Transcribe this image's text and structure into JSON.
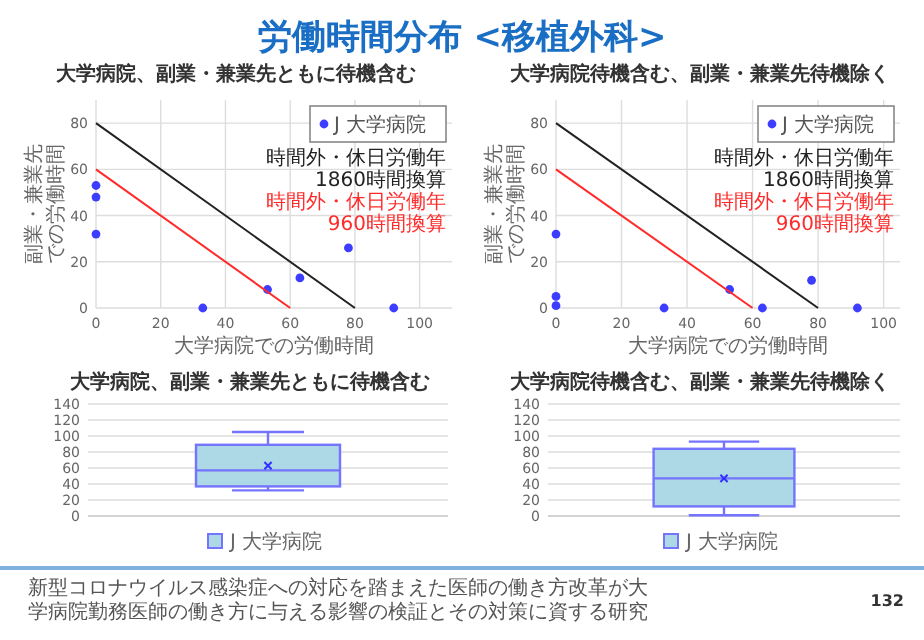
{
  "chart_data": [
    {
      "type": "scatter",
      "title": "大学病院、副業・兼業先ともに待機含む",
      "xlabel": "大学病院での労働時間",
      "ylabel": "副業・兼業先での労働時間",
      "xlim": [
        0,
        110
      ],
      "xticks": [
        0,
        20,
        40,
        60,
        80,
        100
      ],
      "ylim": [
        0,
        90
      ],
      "yticks": [
        0,
        20,
        40,
        60,
        80
      ],
      "grid": true,
      "legend": "top right",
      "marker": "circle",
      "annotations": [
        "労働時間分布 <移植外科>",
        "新型コロナウイルス感染症への対応を踏まえた医師の働き方改革が大学病院勤務医師の働き方に与える影響の検証とその対策に資する研究",
        "132"
      ],
      "series": [
        {
          "name": "J 大学病院",
          "color": "#3d3dff",
          "x": [
            0,
            0,
            0,
            33,
            53,
            63,
            78,
            92
          ],
          "values": [
            53,
            48,
            32,
            0,
            8,
            13,
            26,
            0
          ]
        },
        {
          "type": "line",
          "name": "時間外・休日労働年1860時間換算",
          "color": "#222222",
          "marker": "none",
          "x": [
            0,
            80
          ],
          "values": [
            80,
            0
          ]
        },
        {
          "type": "line",
          "name": "時間外・休日労働年960時間換算",
          "color": "#ff2a2a",
          "marker": "none",
          "x": [
            0,
            60
          ],
          "values": [
            60,
            0
          ]
        }
      ]
    },
    {
      "type": "scatter",
      "title": "大学病院待機含む、副業・兼業先待機除く",
      "xlabel": "大学病院での労働時間",
      "ylabel": "副業・兼業先での労働時間",
      "xlim": [
        0,
        105
      ],
      "xticks": [
        0,
        20,
        40,
        60,
        80,
        100
      ],
      "ylim": [
        0,
        90
      ],
      "yticks": [
        0,
        20,
        40,
        60,
        80
      ],
      "grid": true,
      "legend": "top right",
      "marker": "circle",
      "series": [
        {
          "name": "J 大学病院",
          "color": "#3d3dff",
          "x": [
            0,
            0,
            0,
            33,
            53,
            63,
            78,
            92
          ],
          "values": [
            32,
            5,
            1,
            0,
            8,
            0,
            12,
            0
          ]
        },
        {
          "type": "line",
          "name": "時間外・休日労働年1860時間換算",
          "color": "#222222",
          "marker": "none",
          "x": [
            0,
            80
          ],
          "values": [
            80,
            0
          ]
        },
        {
          "type": "line",
          "name": "時間外・休日労働年960時間換算",
          "color": "#ff2a2a",
          "marker": "none",
          "x": [
            0,
            60
          ],
          "values": [
            60,
            0
          ]
        }
      ]
    },
    {
      "type": "box",
      "title": "大学病院、副業・兼業先ともに待機含む",
      "categories": [
        null
      ],
      "ylim": [
        0,
        140
      ],
      "yticks": [
        0,
        20,
        40,
        60,
        80,
        100,
        120,
        140
      ],
      "grid": "y",
      "legend": "bottom",
      "series": [
        {
          "name": "J 大学病院",
          "color": "#add8e6",
          "boxes": [
            {
              "low": 32,
              "q1": 37,
              "median": 57,
              "q3": 89,
              "high": 105,
              "mean": 63
            }
          ]
        }
      ]
    },
    {
      "type": "box",
      "title": "大学病院待機含む、副業・兼業先待機除く",
      "categories": [
        null
      ],
      "ylim": [
        0,
        140
      ],
      "yticks": [
        0,
        20,
        40,
        60,
        80,
        100,
        120,
        140
      ],
      "grid": "y",
      "legend": "bottom",
      "series": [
        {
          "name": "J 大学病院",
          "color": "#add8e6",
          "boxes": [
            {
              "low": 1,
              "q1": 12,
              "median": 47,
              "q3": 84,
              "high": 93,
              "mean": 47
            }
          ]
        }
      ]
    }
  ]
}
